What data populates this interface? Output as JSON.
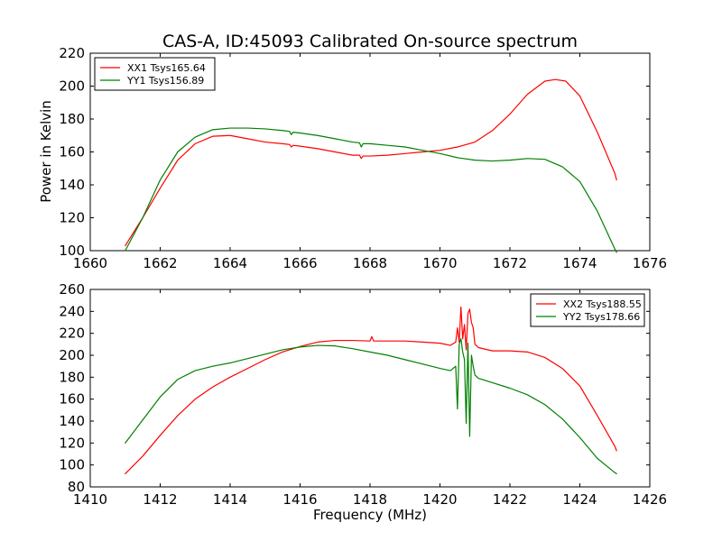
{
  "figure": {
    "title": "CAS-A, ID:45093 Calibrated On-source spectrum",
    "xlabel_bottom": "Frequency (MHz)",
    "ylabel_top": "Power in Kelvin",
    "colors": {
      "red": "#ff0000",
      "green": "#008000"
    }
  },
  "chart_data": [
    {
      "type": "line",
      "title": "CAS-A, ID:45093 Calibrated On-source spectrum",
      "xlabel": "",
      "ylabel": "Power in Kelvin",
      "xlim": [
        1660,
        1676
      ],
      "ylim": [
        100,
        220
      ],
      "xticks": [
        1660,
        1662,
        1664,
        1666,
        1668,
        1670,
        1672,
        1674,
        1676
      ],
      "yticks": [
        100,
        120,
        140,
        160,
        180,
        200,
        220
      ],
      "legend": "top-left",
      "grid": false,
      "series": [
        {
          "name": "XX1 Tsys165.64",
          "color": "#ff0000",
          "points": [
            [
              1661.0,
              103
            ],
            [
              1661.5,
              120
            ],
            [
              1662.0,
              138
            ],
            [
              1662.5,
              155
            ],
            [
              1663.0,
              165
            ],
            [
              1663.5,
              169.5
            ],
            [
              1664.0,
              170
            ],
            [
              1664.5,
              168
            ],
            [
              1665.0,
              166
            ],
            [
              1665.5,
              165
            ],
            [
              1665.7,
              164.5
            ],
            [
              1665.75,
              163
            ],
            [
              1665.8,
              164
            ],
            [
              1666.0,
              163.5
            ],
            [
              1666.5,
              162
            ],
            [
              1667.0,
              160
            ],
            [
              1667.5,
              158
            ],
            [
              1667.7,
              158
            ],
            [
              1667.75,
              156
            ],
            [
              1667.8,
              157.5
            ],
            [
              1668.0,
              157.5
            ],
            [
              1668.5,
              158
            ],
            [
              1669.0,
              159
            ],
            [
              1669.5,
              160
            ],
            [
              1670.0,
              161
            ],
            [
              1670.5,
              163
            ],
            [
              1671.0,
              166
            ],
            [
              1671.5,
              173
            ],
            [
              1672.0,
              183
            ],
            [
              1672.5,
              195
            ],
            [
              1673.0,
              203
            ],
            [
              1673.3,
              204
            ],
            [
              1673.6,
              203
            ],
            [
              1674.0,
              194
            ],
            [
              1674.5,
              172
            ],
            [
              1675.0,
              147
            ],
            [
              1675.05,
              143
            ]
          ]
        },
        {
          "name": "YY1 Tsys156.89",
          "color": "#008000",
          "points": [
            [
              1661.0,
              100
            ],
            [
              1661.5,
              120
            ],
            [
              1662.0,
              143
            ],
            [
              1662.5,
              160
            ],
            [
              1663.0,
              169
            ],
            [
              1663.5,
              173.5
            ],
            [
              1664.0,
              174.5
            ],
            [
              1664.5,
              174.5
            ],
            [
              1665.0,
              174
            ],
            [
              1665.5,
              173
            ],
            [
              1665.7,
              172.5
            ],
            [
              1665.75,
              170.5
            ],
            [
              1665.8,
              172
            ],
            [
              1666.0,
              171.5
            ],
            [
              1666.5,
              170
            ],
            [
              1667.0,
              168
            ],
            [
              1667.5,
              166
            ],
            [
              1667.7,
              165.5
            ],
            [
              1667.75,
              163
            ],
            [
              1667.8,
              165
            ],
            [
              1668.0,
              165
            ],
            [
              1668.5,
              164
            ],
            [
              1669.0,
              163
            ],
            [
              1669.5,
              161
            ],
            [
              1670.0,
              159
            ],
            [
              1670.5,
              156.5
            ],
            [
              1671.0,
              155
            ],
            [
              1671.5,
              154.5
            ],
            [
              1672.0,
              155
            ],
            [
              1672.5,
              156
            ],
            [
              1673.0,
              155.5
            ],
            [
              1673.5,
              151
            ],
            [
              1674.0,
              142
            ],
            [
              1674.5,
              124
            ],
            [
              1675.0,
              101
            ],
            [
              1675.05,
              99
            ]
          ]
        }
      ]
    },
    {
      "type": "line",
      "title": "",
      "xlabel": "Frequency (MHz)",
      "ylabel": "",
      "xlim": [
        1410,
        1426
      ],
      "ylim": [
        80,
        260
      ],
      "xticks": [
        1410,
        1412,
        1414,
        1416,
        1418,
        1420,
        1422,
        1424,
        1426
      ],
      "yticks": [
        80,
        100,
        120,
        140,
        160,
        180,
        200,
        220,
        240,
        260
      ],
      "legend": "top-right",
      "grid": false,
      "series": [
        {
          "name": "XX2 Tsys188.55",
          "color": "#ff0000",
          "points": [
            [
              1411.0,
              92
            ],
            [
              1411.5,
              108
            ],
            [
              1412.0,
              127
            ],
            [
              1412.5,
              145
            ],
            [
              1413.0,
              160
            ],
            [
              1413.5,
              171
            ],
            [
              1414.0,
              180
            ],
            [
              1414.5,
              188
            ],
            [
              1415.0,
              196
            ],
            [
              1415.5,
              203
            ],
            [
              1416.0,
              208
            ],
            [
              1416.5,
              212
            ],
            [
              1417.0,
              213.5
            ],
            [
              1417.5,
              213.5
            ],
            [
              1418.0,
              213
            ],
            [
              1418.05,
              217
            ],
            [
              1418.1,
              213
            ],
            [
              1418.5,
              213
            ],
            [
              1419.0,
              213
            ],
            [
              1419.5,
              212
            ],
            [
              1420.0,
              211
            ],
            [
              1420.3,
              209
            ],
            [
              1420.45,
              212
            ],
            [
              1420.5,
              225
            ],
            [
              1420.55,
              212
            ],
            [
              1420.6,
              244
            ],
            [
              1420.65,
              215
            ],
            [
              1420.7,
              228
            ],
            [
              1420.75,
              205
            ],
            [
              1420.8,
              238
            ],
            [
              1420.85,
              242
            ],
            [
              1420.9,
              230
            ],
            [
              1420.95,
              225
            ],
            [
              1421.0,
              210
            ],
            [
              1421.1,
              207
            ],
            [
              1421.5,
              204
            ],
            [
              1422.0,
              204
            ],
            [
              1422.5,
              203
            ],
            [
              1423.0,
              198
            ],
            [
              1423.5,
              188
            ],
            [
              1424.0,
              172
            ],
            [
              1424.5,
              145
            ],
            [
              1425.0,
              117
            ],
            [
              1425.05,
              113
            ]
          ]
        },
        {
          "name": "YY2 Tsys178.66",
          "color": "#008000",
          "points": [
            [
              1411.0,
              120
            ],
            [
              1411.5,
              141
            ],
            [
              1412.0,
              162
            ],
            [
              1412.5,
              178
            ],
            [
              1413.0,
              186
            ],
            [
              1413.5,
              190
            ],
            [
              1414.0,
              193
            ],
            [
              1414.5,
              197
            ],
            [
              1415.0,
              201
            ],
            [
              1415.5,
              205
            ],
            [
              1416.0,
              207.5
            ],
            [
              1416.5,
              209
            ],
            [
              1417.0,
              208.5
            ],
            [
              1417.5,
              206
            ],
            [
              1418.0,
              203
            ],
            [
              1418.5,
              200
            ],
            [
              1419.0,
              196
            ],
            [
              1419.5,
              192
            ],
            [
              1420.0,
              188
            ],
            [
              1420.3,
              186
            ],
            [
              1420.45,
              190
            ],
            [
              1420.5,
              151
            ],
            [
              1420.55,
              210
            ],
            [
              1420.6,
              215
            ],
            [
              1420.65,
              203
            ],
            [
              1420.7,
              196
            ],
            [
              1420.75,
              138
            ],
            [
              1420.8,
              211
            ],
            [
              1420.85,
              126
            ],
            [
              1420.9,
              200
            ],
            [
              1420.95,
              190
            ],
            [
              1421.0,
              182
            ],
            [
              1421.1,
              179
            ],
            [
              1421.5,
              175
            ],
            [
              1422.0,
              170
            ],
            [
              1422.5,
              164
            ],
            [
              1423.0,
              155
            ],
            [
              1423.5,
              142
            ],
            [
              1424.0,
              125
            ],
            [
              1424.5,
              106
            ],
            [
              1425.0,
              93
            ],
            [
              1425.05,
              92
            ]
          ]
        }
      ]
    }
  ]
}
